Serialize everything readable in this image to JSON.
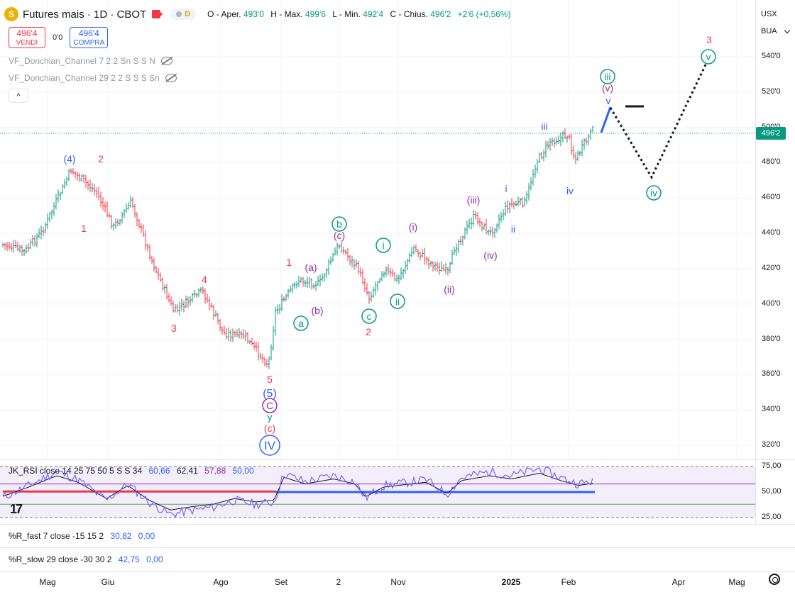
{
  "header": {
    "logo_letter": "S",
    "title": "Futures mais · 1D · CBOT",
    "pill_d": "D",
    "ohlc": [
      {
        "k": "O",
        "label": "Aper.",
        "v": "493'0"
      },
      {
        "k": "H",
        "label": "Max.",
        "v": "499'6"
      },
      {
        "k": "L",
        "label": "Min.",
        "v": "492'4"
      },
      {
        "k": "C",
        "label": "Chius.",
        "v": "496'2"
      }
    ],
    "change": "+2'6 (+0,56%)"
  },
  "trade": {
    "sell_price": "496'4",
    "sell_label": "VENDI",
    "spread": "0'0",
    "buy_price": "496'4",
    "buy_label": "COMPRA"
  },
  "indicators": [
    "VF_Donchian_Channel 7 2 2 Sn S S N",
    "VF_Donchian_Channel 29 2 2 S S S Sn"
  ],
  "collapse_glyph": "^",
  "right_panel": {
    "currency": "USX",
    "type": "BUA"
  },
  "price_axis": {
    "ticks": [
      "540'0",
      "520'0",
      "500'0",
      "480'0",
      "460'0",
      "440'0",
      "420'0",
      "400'0",
      "380'0",
      "360'0",
      "340'0",
      "320'0"
    ],
    "current": "496'2"
  },
  "rsi": {
    "label": "JK_RSI close 14 25 75 50 5 S S 34",
    "values": [
      {
        "v": "60,66",
        "color": "#2962ff"
      },
      {
        "v": "62,41",
        "color": "#131722"
      },
      {
        "v": "57,88",
        "color": "#9c27b0"
      },
      {
        "v": "50,00",
        "color": "#2962ff"
      }
    ],
    "ticks": [
      "75,00",
      "50,00",
      "25,00"
    ]
  },
  "wr_fast": {
    "label": "%R_fast 7 close -15 15 2",
    "v1": "30,82",
    "v2": "0,00"
  },
  "wr_slow": {
    "label": "%R_slow 29 close -30 30 2",
    "v1": "42,75",
    "v2": "0,00"
  },
  "time_axis": [
    {
      "label": "Mag",
      "bold": false
    },
    {
      "label": "Giu",
      "bold": false
    },
    {
      "label": "Ago",
      "bold": false
    },
    {
      "label": "Set",
      "bold": false
    },
    {
      "label": "2",
      "bold": false
    },
    {
      "label": "Nov",
      "bold": false
    },
    {
      "label": "2025",
      "bold": true
    },
    {
      "label": "Feb",
      "bold": false
    },
    {
      "label": "Apr",
      "bold": false
    },
    {
      "label": "Mag",
      "bold": false
    }
  ],
  "wave_labels": [
    {
      "t": "(4)",
      "c": "#2962ff"
    },
    {
      "t": "2",
      "c": "#f23645"
    },
    {
      "t": "1",
      "c": "#f23645"
    },
    {
      "t": "3",
      "c": "#f23645"
    },
    {
      "t": "4",
      "c": "#f23645"
    },
    {
      "t": "5",
      "c": "#f23645"
    },
    {
      "t": "(5)",
      "c": "#2962ff"
    },
    {
      "t": "C",
      "c": "#9c27b0"
    },
    {
      "t": "y",
      "c": "#089981"
    },
    {
      "t": "(c)",
      "c": "#f23645"
    },
    {
      "t": "IV",
      "c": "#2962ff"
    },
    {
      "t": "1",
      "c": "#f23645"
    },
    {
      "t": "(a)",
      "c": "#9c27b0"
    },
    {
      "t": "(b)",
      "c": "#9c27b0"
    },
    {
      "t": "a",
      "c": "#089981"
    },
    {
      "t": "b",
      "c": "#089981"
    },
    {
      "t": "(c)",
      "c": "#9c27b0"
    },
    {
      "t": "c",
      "c": "#089981"
    },
    {
      "t": "2",
      "c": "#f23645"
    },
    {
      "t": "i",
      "c": "#089981"
    },
    {
      "t": "ii",
      "c": "#089981"
    },
    {
      "t": "(i)",
      "c": "#9c27b0"
    },
    {
      "t": "(ii)",
      "c": "#9c27b0"
    },
    {
      "t": "(iii)",
      "c": "#9c27b0"
    },
    {
      "t": "(iv)",
      "c": "#9c27b0"
    },
    {
      "t": "i",
      "c": "#2962ff"
    },
    {
      "t": "ii",
      "c": "#2962ff"
    },
    {
      "t": "iii",
      "c": "#2962ff"
    },
    {
      "t": "iv",
      "c": "#2962ff"
    },
    {
      "t": "v",
      "c": "#2962ff"
    },
    {
      "t": "(v)",
      "c": "#9c27b0"
    },
    {
      "t": "iii",
      "c": "#089981"
    },
    {
      "t": "iv",
      "c": "#089981"
    },
    {
      "t": "v",
      "c": "#089981"
    },
    {
      "t": "3",
      "c": "#f23645"
    }
  ],
  "colors": {
    "up": "#089981",
    "down": "#f23645",
    "accent": "#2962ff"
  }
}
